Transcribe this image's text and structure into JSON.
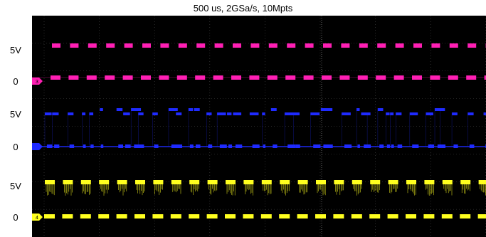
{
  "header": {
    "title": "500 us, 2GSa/s, 10Mpts"
  },
  "channels": [
    {
      "id": "ch3",
      "marker_label": "3",
      "color": "#ff1fb4",
      "labels": {
        "high": "5V",
        "zero": "0"
      },
      "pattern": "regular-square"
    },
    {
      "id": "ch2",
      "marker_label": "",
      "color": "#1f2bff",
      "labels": {
        "high": "5V",
        "zero": "0"
      },
      "pattern": "irregular-square"
    },
    {
      "id": "ch4",
      "marker_label": "4",
      "color": "#ffff1f",
      "labels": {
        "high": "5V",
        "zero": "0"
      },
      "pattern": "noisy-square"
    }
  ],
  "grid": {
    "divisions_x": 10,
    "divisions_y": 8,
    "style": "dotted",
    "color": "#4a4a4a"
  },
  "icons": {
    "channel_marker": "arrow-tag-icon"
  }
}
